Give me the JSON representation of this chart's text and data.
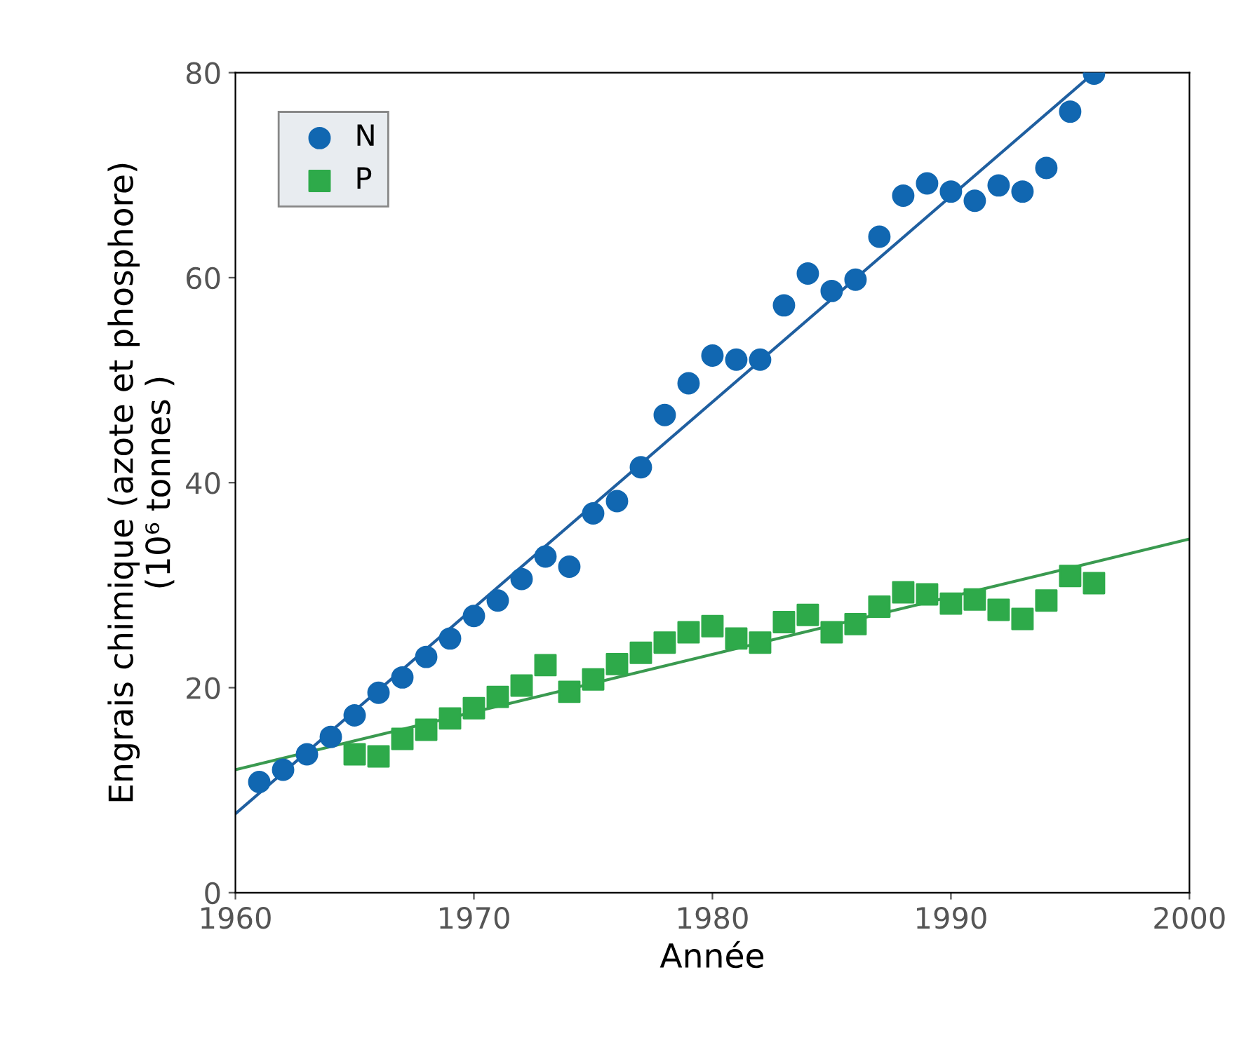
{
  "chart_data": {
    "type": "scatter",
    "xlabel": "Année",
    "ylabel": "Engrais chimique (azote et phosphore)\n(10⁶ tonnes )",
    "xlim": [
      1960,
      2000
    ],
    "xticks": [
      1960,
      1970,
      1980,
      1990,
      2000
    ],
    "ylim": [
      0,
      80
    ],
    "yticks": [
      0,
      20,
      40,
      60,
      80
    ],
    "grid": false,
    "legend": "top left",
    "series": [
      {
        "name": "N",
        "color": "#1167b1",
        "marker": "circle",
        "x": [
          1961,
          1962,
          1963,
          1964,
          1965,
          1966,
          1967,
          1968,
          1969,
          1970,
          1971,
          1972,
          1973,
          1974,
          1975,
          1976,
          1977,
          1978,
          1979,
          1980,
          1981,
          1982,
          1983,
          1984,
          1985,
          1986,
          1987,
          1988,
          1989,
          1990,
          1991,
          1992,
          1993,
          1994,
          1995,
          1996
        ],
        "values": [
          10.8,
          12,
          13.5,
          15.2,
          17.3,
          19.5,
          21,
          23,
          24.8,
          27,
          28.5,
          30.6,
          32.8,
          31.8,
          37,
          38.2,
          41.5,
          46.6,
          49.7,
          52.4,
          52,
          52,
          57.3,
          60.4,
          58.7,
          59.8,
          64,
          68,
          69.2,
          68.4,
          67.5,
          69,
          68.4,
          70.7,
          76.2,
          79.9
        ]
      },
      {
        "name": "P",
        "color": "#2eaa4a",
        "marker": "square",
        "x": [
          1965,
          1966,
          1967,
          1968,
          1969,
          1970,
          1971,
          1972,
          1973,
          1974,
          1975,
          1976,
          1977,
          1978,
          1979,
          1980,
          1981,
          1982,
          1983,
          1984,
          1985,
          1986,
          1987,
          1988,
          1989,
          1990,
          1991,
          1992,
          1993,
          1994,
          1995,
          1996
        ],
        "values": [
          13.5,
          13.3,
          15,
          15.9,
          17,
          18,
          19.1,
          20.2,
          22.2,
          19.6,
          20.8,
          22.3,
          23.4,
          24.4,
          25.4,
          26,
          24.8,
          24.4,
          26.4,
          27.1,
          25.4,
          26.2,
          27.9,
          29.3,
          29.1,
          28.2,
          28.6,
          27.6,
          26.7,
          28.5,
          30.9,
          30.2
        ]
      },
      {
        "type": "line",
        "color": "#1f5fa0",
        "x": [
          1960,
          1996
        ],
        "values": [
          7.7,
          80
        ]
      },
      {
        "type": "line",
        "color": "#3a9a50",
        "x": [
          1960,
          2000
        ],
        "values": [
          12,
          34.5
        ]
      }
    ]
  }
}
